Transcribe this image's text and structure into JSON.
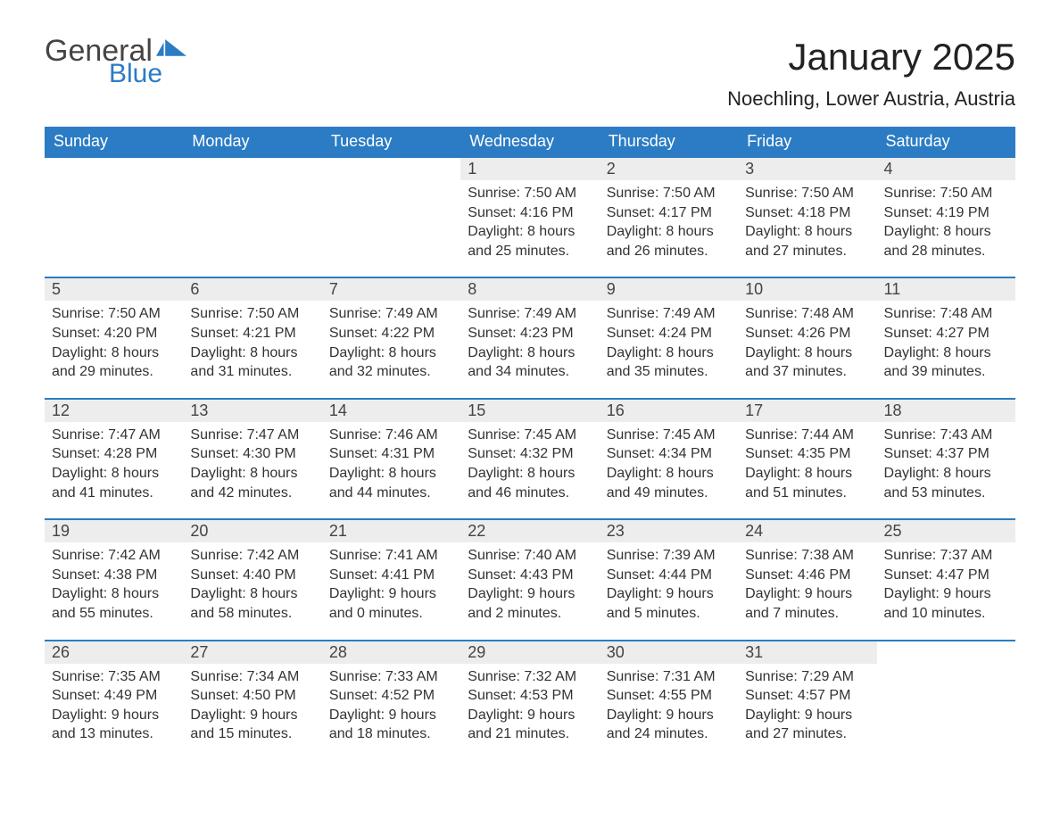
{
  "brand": {
    "word1": "General",
    "word2": "Blue",
    "accent_color": "#2b7cc4"
  },
  "title": "January 2025",
  "location": "Noechling, Lower Austria, Austria",
  "weekdays": [
    "Sunday",
    "Monday",
    "Tuesday",
    "Wednesday",
    "Thursday",
    "Friday",
    "Saturday"
  ],
  "colors": {
    "header_bg": "#2b7cc4",
    "header_text": "#ffffff",
    "daynum_bg": "#ededed",
    "border_top": "#2b7cc4",
    "body_text": "#333333",
    "page_bg": "#ffffff"
  },
  "typography": {
    "month_title_fontsize": 42,
    "location_fontsize": 22,
    "weekday_fontsize": 18,
    "daynum_fontsize": 18,
    "cell_fontsize": 16
  },
  "labels": {
    "sunrise": "Sunrise:",
    "sunset": "Sunset:",
    "daylight": "Daylight:"
  },
  "weeks": [
    [
      null,
      null,
      null,
      {
        "n": "1",
        "sunrise": "7:50 AM",
        "sunset": "4:16 PM",
        "day_h": "8",
        "day_m": "25"
      },
      {
        "n": "2",
        "sunrise": "7:50 AM",
        "sunset": "4:17 PM",
        "day_h": "8",
        "day_m": "26"
      },
      {
        "n": "3",
        "sunrise": "7:50 AM",
        "sunset": "4:18 PM",
        "day_h": "8",
        "day_m": "27"
      },
      {
        "n": "4",
        "sunrise": "7:50 AM",
        "sunset": "4:19 PM",
        "day_h": "8",
        "day_m": "28"
      }
    ],
    [
      {
        "n": "5",
        "sunrise": "7:50 AM",
        "sunset": "4:20 PM",
        "day_h": "8",
        "day_m": "29"
      },
      {
        "n": "6",
        "sunrise": "7:50 AM",
        "sunset": "4:21 PM",
        "day_h": "8",
        "day_m": "31"
      },
      {
        "n": "7",
        "sunrise": "7:49 AM",
        "sunset": "4:22 PM",
        "day_h": "8",
        "day_m": "32"
      },
      {
        "n": "8",
        "sunrise": "7:49 AM",
        "sunset": "4:23 PM",
        "day_h": "8",
        "day_m": "34"
      },
      {
        "n": "9",
        "sunrise": "7:49 AM",
        "sunset": "4:24 PM",
        "day_h": "8",
        "day_m": "35"
      },
      {
        "n": "10",
        "sunrise": "7:48 AM",
        "sunset": "4:26 PM",
        "day_h": "8",
        "day_m": "37"
      },
      {
        "n": "11",
        "sunrise": "7:48 AM",
        "sunset": "4:27 PM",
        "day_h": "8",
        "day_m": "39"
      }
    ],
    [
      {
        "n": "12",
        "sunrise": "7:47 AM",
        "sunset": "4:28 PM",
        "day_h": "8",
        "day_m": "41"
      },
      {
        "n": "13",
        "sunrise": "7:47 AM",
        "sunset": "4:30 PM",
        "day_h": "8",
        "day_m": "42"
      },
      {
        "n": "14",
        "sunrise": "7:46 AM",
        "sunset": "4:31 PM",
        "day_h": "8",
        "day_m": "44"
      },
      {
        "n": "15",
        "sunrise": "7:45 AM",
        "sunset": "4:32 PM",
        "day_h": "8",
        "day_m": "46"
      },
      {
        "n": "16",
        "sunrise": "7:45 AM",
        "sunset": "4:34 PM",
        "day_h": "8",
        "day_m": "49"
      },
      {
        "n": "17",
        "sunrise": "7:44 AM",
        "sunset": "4:35 PM",
        "day_h": "8",
        "day_m": "51"
      },
      {
        "n": "18",
        "sunrise": "7:43 AM",
        "sunset": "4:37 PM",
        "day_h": "8",
        "day_m": "53"
      }
    ],
    [
      {
        "n": "19",
        "sunrise": "7:42 AM",
        "sunset": "4:38 PM",
        "day_h": "8",
        "day_m": "55"
      },
      {
        "n": "20",
        "sunrise": "7:42 AM",
        "sunset": "4:40 PM",
        "day_h": "8",
        "day_m": "58"
      },
      {
        "n": "21",
        "sunrise": "7:41 AM",
        "sunset": "4:41 PM",
        "day_h": "9",
        "day_m": "0"
      },
      {
        "n": "22",
        "sunrise": "7:40 AM",
        "sunset": "4:43 PM",
        "day_h": "9",
        "day_m": "2"
      },
      {
        "n": "23",
        "sunrise": "7:39 AM",
        "sunset": "4:44 PM",
        "day_h": "9",
        "day_m": "5"
      },
      {
        "n": "24",
        "sunrise": "7:38 AM",
        "sunset": "4:46 PM",
        "day_h": "9",
        "day_m": "7"
      },
      {
        "n": "25",
        "sunrise": "7:37 AM",
        "sunset": "4:47 PM",
        "day_h": "9",
        "day_m": "10"
      }
    ],
    [
      {
        "n": "26",
        "sunrise": "7:35 AM",
        "sunset": "4:49 PM",
        "day_h": "9",
        "day_m": "13"
      },
      {
        "n": "27",
        "sunrise": "7:34 AM",
        "sunset": "4:50 PM",
        "day_h": "9",
        "day_m": "15"
      },
      {
        "n": "28",
        "sunrise": "7:33 AM",
        "sunset": "4:52 PM",
        "day_h": "9",
        "day_m": "18"
      },
      {
        "n": "29",
        "sunrise": "7:32 AM",
        "sunset": "4:53 PM",
        "day_h": "9",
        "day_m": "21"
      },
      {
        "n": "30",
        "sunrise": "7:31 AM",
        "sunset": "4:55 PM",
        "day_h": "9",
        "day_m": "24"
      },
      {
        "n": "31",
        "sunrise": "7:29 AM",
        "sunset": "4:57 PM",
        "day_h": "9",
        "day_m": "27"
      },
      null
    ]
  ]
}
